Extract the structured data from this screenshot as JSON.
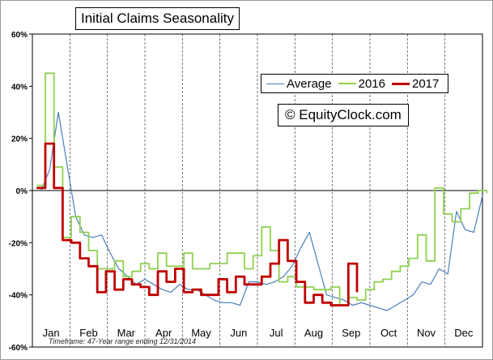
{
  "chart_data": {
    "type": "line",
    "title": "Initial Claims Seasonality",
    "watermark": "© EquityClock.com",
    "note": "Timeframe: 47-Year range ending 12/31/2014",
    "months": [
      "Jan",
      "Feb",
      "Mar",
      "Apr",
      "May",
      "Jun",
      "Jul",
      "Aug",
      "Sep",
      "Oct",
      "Nov",
      "Dec"
    ],
    "y_ticks": [
      "60%",
      "40%",
      "20%",
      "0%",
      "-20%",
      "-40%",
      "-60%"
    ],
    "ylim": [
      -60,
      60
    ],
    "grid": "vertical dashed at month boundaries",
    "legend_position": "top-right",
    "x_unit": "week of year",
    "series": [
      {
        "name": "Average",
        "color": "#4a7ebb",
        "width": 1.2,
        "x": [
          1,
          2,
          3,
          4,
          5,
          6,
          7,
          8,
          9,
          10,
          11,
          12,
          13,
          14,
          15,
          16,
          17,
          18,
          19,
          20,
          21,
          22,
          23,
          24,
          25,
          26,
          27,
          28,
          29,
          30,
          31,
          32,
          33,
          34,
          35,
          36,
          37,
          38,
          39,
          40,
          41,
          42,
          43,
          44,
          45,
          46,
          47,
          48,
          49,
          50,
          51,
          52
        ],
        "values": [
          0,
          8,
          30,
          10,
          -10,
          -17,
          -18,
          -17,
          -24,
          -30,
          -33,
          -36,
          -34,
          -36,
          -38,
          -39,
          -36,
          -38,
          -38,
          -40,
          -42,
          -43,
          -43,
          -44,
          -35,
          -35,
          -36,
          -35,
          -33,
          -29,
          -22,
          -16,
          -28,
          -40,
          -41,
          -42,
          -44,
          -43,
          -44,
          -45,
          -46,
          -44,
          -42,
          -40,
          -35,
          -36,
          -30,
          -32,
          -8,
          -15,
          -16,
          -2
        ]
      },
      {
        "name": "2016",
        "color": "#8fd14f",
        "width": 1.8,
        "x": [
          0.5,
          1.5,
          2.5,
          3.5,
          4.5,
          5.5,
          6.5,
          7.5,
          8.5,
          9.5,
          10.5,
          11.5,
          12.5,
          13.5,
          14.5,
          15.5,
          16.5,
          17.5,
          18.5,
          19.5,
          20.5,
          21.5,
          22.5,
          23.5,
          24.5,
          25.5,
          26.5,
          27.5,
          28.5,
          29.5,
          30.5,
          31.5,
          32.5,
          33.5,
          34.5,
          35.5,
          36.5,
          37.5,
          38.5,
          39.5,
          40.5,
          41.5,
          42.5,
          43.5,
          44.5,
          45.5,
          46.5,
          47.5,
          48.5,
          49.5,
          50.5,
          51.5,
          52.5
        ],
        "values": [
          2,
          45,
          9,
          -18,
          -10,
          -16,
          -23,
          -30,
          -30,
          -27,
          -33,
          -31,
          -28,
          -30,
          -24,
          -29,
          -29,
          -24,
          -30,
          -30,
          -28,
          -28,
          -24,
          -24,
          -30,
          -25,
          -14,
          -23,
          -35,
          -33,
          -37,
          -37,
          -38,
          -38,
          -37,
          -44,
          -41,
          -42,
          -38,
          -35,
          -34,
          -31,
          -29,
          -26,
          -17,
          -27,
          1,
          -9,
          -12,
          -7,
          -1,
          0,
          -1
        ]
      },
      {
        "name": "2017",
        "color": "#c00000",
        "width": 2.8,
        "x": [
          0.5,
          1.5,
          2.5,
          3.5,
          4.5,
          5.5,
          6.5,
          7.5,
          8.5,
          9.5,
          10.5,
          11.5,
          12.5,
          13.5,
          14.5,
          15.5,
          16.5,
          17.5,
          18.5,
          19.5,
          20.5,
          21.5,
          22.5,
          23.5,
          24.5,
          25.5,
          26.5,
          27.5,
          28.5,
          29.5,
          30.5,
          31.5,
          32.5,
          33.5,
          34.5,
          35.5,
          36.5,
          37.5
        ],
        "values": [
          1,
          18,
          1,
          -19,
          -20,
          -26,
          -29,
          -39,
          -31,
          -38,
          -34,
          -36,
          -37,
          -40,
          -31,
          -35,
          -30,
          -39,
          -38,
          -40,
          -40,
          -34,
          -39,
          -33,
          -36,
          -36,
          -33,
          -28,
          -19,
          -27,
          -35,
          -43,
          -40,
          -43,
          -44,
          -44,
          -28,
          -39
        ]
      }
    ]
  }
}
